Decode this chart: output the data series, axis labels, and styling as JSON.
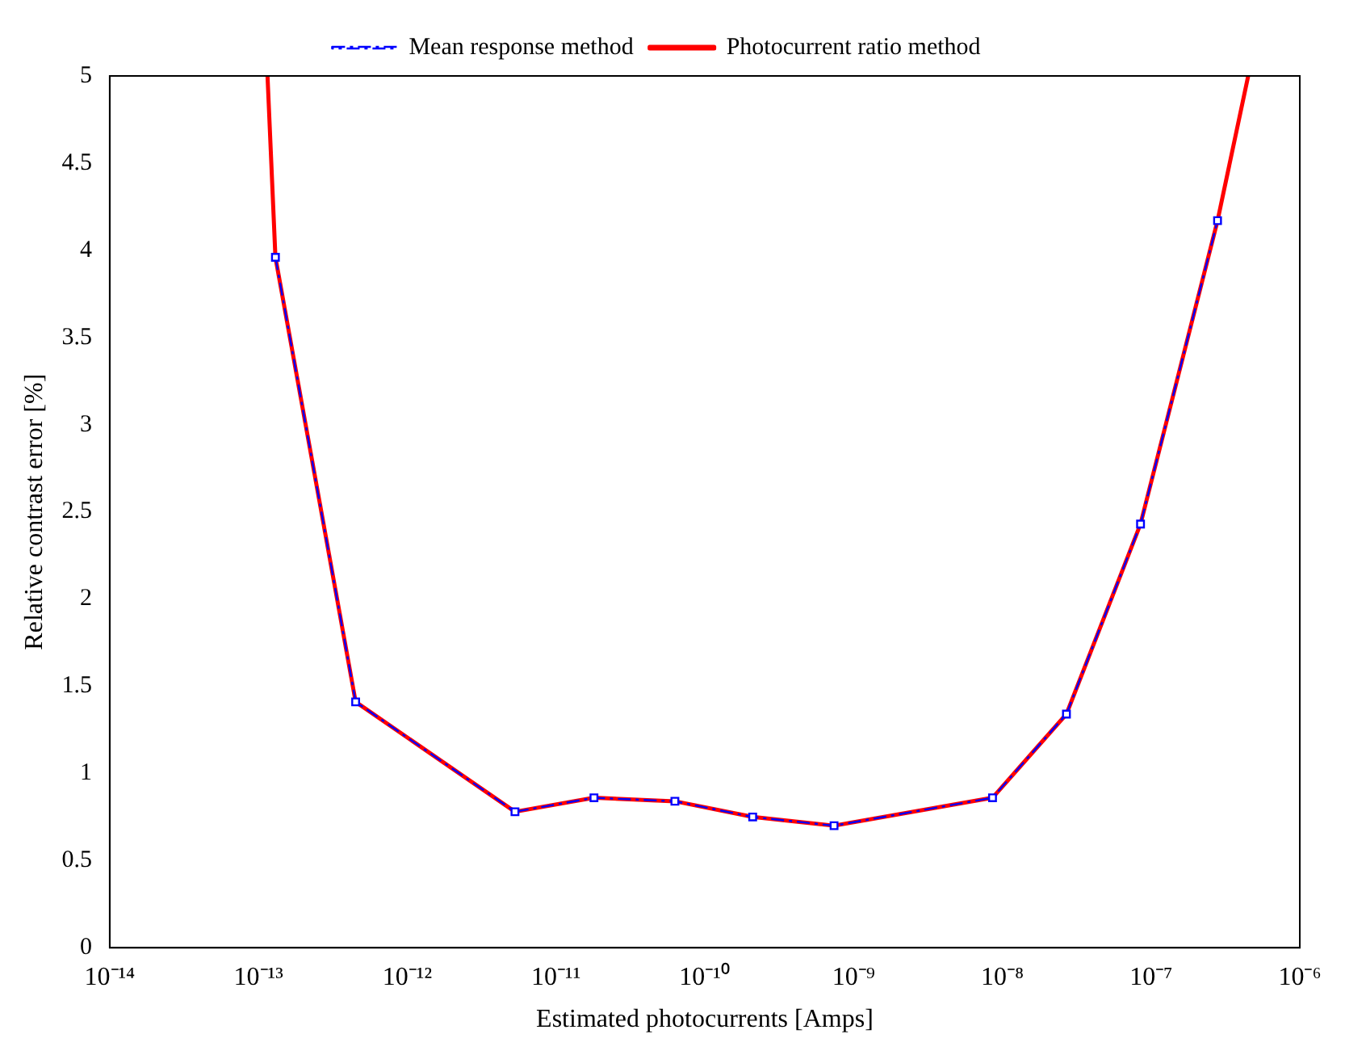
{
  "chart_data": {
    "type": "line",
    "xlabel": "Estimated photocurrents [Amps]",
    "ylabel": "Relative contrast error [%]",
    "log": "x",
    "grid": false,
    "legend": "top",
    "xlim": [
      1e-14,
      1e-06
    ],
    "xticks": [
      {
        "value": 1e-14,
        "label": "10⁻¹⁴"
      },
      {
        "value": 1e-13,
        "label": "10⁻¹³"
      },
      {
        "value": 1e-12,
        "label": "10⁻¹²"
      },
      {
        "value": 1e-11,
        "label": "10⁻¹¹"
      },
      {
        "value": 1e-10,
        "label": "10⁻¹⁰"
      },
      {
        "value": 1e-09,
        "label": "10⁻⁹"
      },
      {
        "value": 1e-08,
        "label": "10⁻⁸"
      },
      {
        "value": 1e-07,
        "label": "10⁻⁷"
      },
      {
        "value": 1e-06,
        "label": "10⁻⁶"
      }
    ],
    "ylim": [
      0,
      5
    ],
    "yticks": [
      0,
      0.5,
      1,
      1.5,
      2,
      2.5,
      3,
      3.5,
      4,
      4.5,
      5
    ],
    "series": [
      {
        "name": "Mean response method",
        "color": "#0000ff",
        "marker": "square",
        "line_style": "dashed",
        "x": [
          1.3e-13,
          4.5e-13,
          5.3e-12,
          1.8e-11,
          6.3e-11,
          2.1e-10,
          7.4e-10,
          8.6e-09,
          2.7e-08,
          8.5e-08,
          2.8e-07
        ],
        "values": [
          3.96,
          1.41,
          0.78,
          0.86,
          0.84,
          0.75,
          0.7,
          0.86,
          1.34,
          2.43,
          4.17
        ]
      },
      {
        "name": "Photocurrent ratio method",
        "color": "#ff0000",
        "marker": "none",
        "line_style": "solid",
        "x": [
          1.15e-13,
          1.3e-13,
          4.5e-13,
          5.3e-12,
          1.8e-11,
          6.3e-11,
          2.1e-10,
          7.4e-10,
          8.6e-09,
          2.7e-08,
          8.5e-08,
          2.8e-07,
          4.5e-07
        ],
        "values": [
          5,
          3.96,
          1.41,
          0.78,
          0.86,
          0.84,
          0.75,
          0.7,
          0.86,
          1.34,
          2.43,
          4.17,
          5
        ]
      }
    ]
  }
}
